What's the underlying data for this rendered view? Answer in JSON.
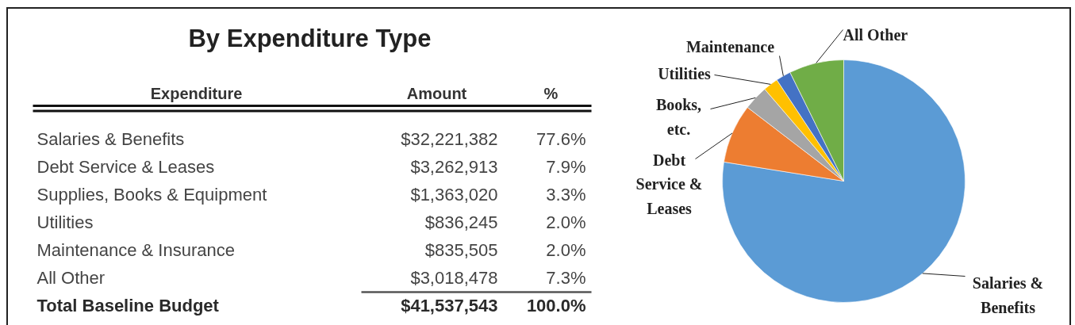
{
  "chart_data": [
    {
      "type": "other",
      "title": "By Expenditure Type",
      "ylabel": "Expenditure",
      "categories": [
        "Salaries & Benefits",
        "Debt Service & Leases",
        "Supplies, Books & Equipment",
        "Utilities",
        "Maintenance & Insurance",
        "All Other",
        "Total Baseline Budget"
      ],
      "series": [
        {
          "name": "Amount",
          "values": [
            32221382,
            3262913,
            1363020,
            836245,
            835505,
            3018478,
            41537543
          ],
          "value_labels": [
            "$32,221,382",
            "$3,262,913",
            "$1,363,020",
            "$836,245",
            "$835,505",
            "$3,018,478",
            "$41,537,543"
          ]
        },
        {
          "name": "%",
          "values": [
            77.6,
            7.9,
            3.3,
            2.0,
            2.0,
            7.3,
            100.0
          ],
          "value_labels": [
            "77.6%",
            "7.9%",
            "3.3%",
            "2.0%",
            "2.0%",
            "7.3%",
            "100.0%"
          ]
        }
      ]
    },
    {
      "type": "pie",
      "categories": [
        "Salaries & Benefits",
        "Debt Service & Leases",
        "Books, etc.",
        "Utilities",
        "Maintenance",
        "All Other"
      ],
      "values": [
        77.6,
        7.9,
        3.3,
        2.0,
        2.0,
        7.3
      ],
      "colors": [
        "#5b9bd5",
        "#ed7d31",
        "#a5a5a5",
        "#ffc000",
        "#4472c4",
        "#70ad47"
      ]
    }
  ]
}
